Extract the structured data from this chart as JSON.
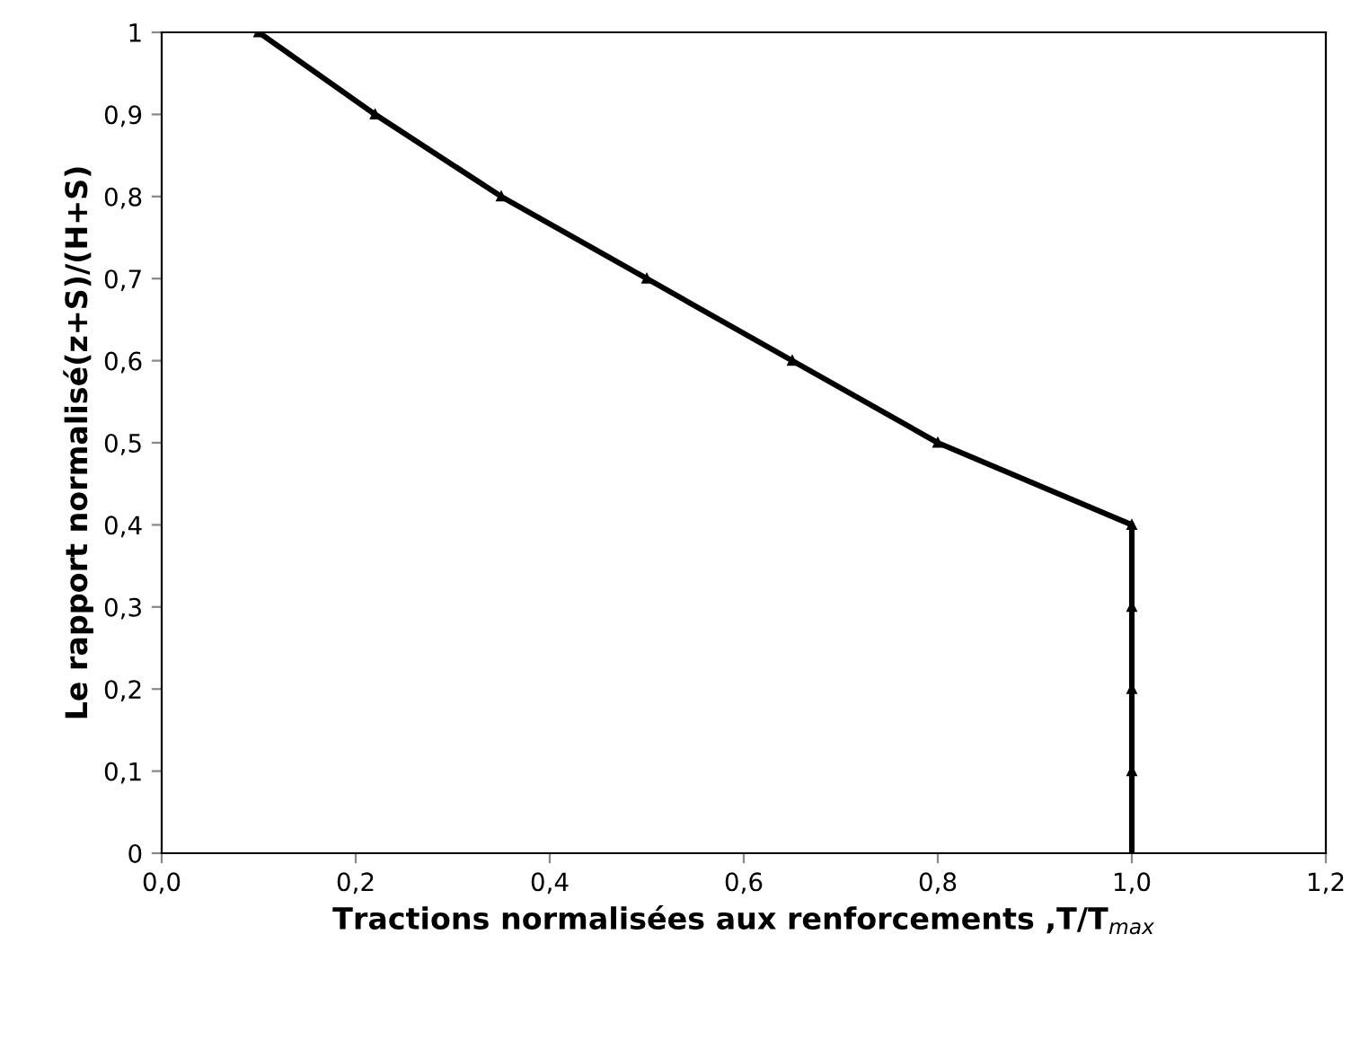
{
  "chart_data": {
    "type": "line",
    "xlabel": "Tractions normalisées aux renforcements ,T/T$_{max}$",
    "ylabel": "Le rapport normalisé(z+S)/(H+S)",
    "series": [
      {
        "color": "#000000",
        "x": [
          0.1,
          0.22,
          0.35,
          0.5,
          0.65,
          0.8,
          1.0,
          1.0,
          1.0,
          1.0,
          1.0
        ],
        "values": [
          1,
          0.9,
          0.8,
          0.7,
          0.6,
          0.5,
          0.4,
          0.3,
          0.2,
          0.1,
          0
        ]
      }
    ],
    "marker": "triangle",
    "line_style": "solid",
    "grid": false,
    "legend": false,
    "xlim": [
      0,
      1.2
    ],
    "ylim": [
      0,
      1
    ],
    "xticks": [
      {
        "value": 0,
        "label": "0,0"
      },
      {
        "value": 0.2,
        "label": "0,2"
      },
      {
        "value": 0.4,
        "label": "0,4"
      },
      {
        "value": 0.6,
        "label": "0,6"
      },
      {
        "value": 0.8,
        "label": "0,8"
      },
      {
        "value": 1.0,
        "label": "1,0"
      },
      {
        "value": 1.2,
        "label": "1,2"
      }
    ],
    "yticks": [
      0,
      {
        "value": 0.1,
        "label": "0,1"
      },
      {
        "value": 0.2,
        "label": "0,2"
      },
      {
        "value": 0.3,
        "label": "0,3"
      },
      {
        "value": 0.4,
        "label": "0,4"
      },
      {
        "value": 0.5,
        "label": "0,5"
      },
      {
        "value": 0.6,
        "label": "0,6"
      },
      {
        "value": 0.7,
        "label": "0,7"
      },
      {
        "value": 0.8,
        "label": "0,8"
      },
      {
        "value": 0.9,
        "label": "0,9"
      },
      1
    ]
  }
}
